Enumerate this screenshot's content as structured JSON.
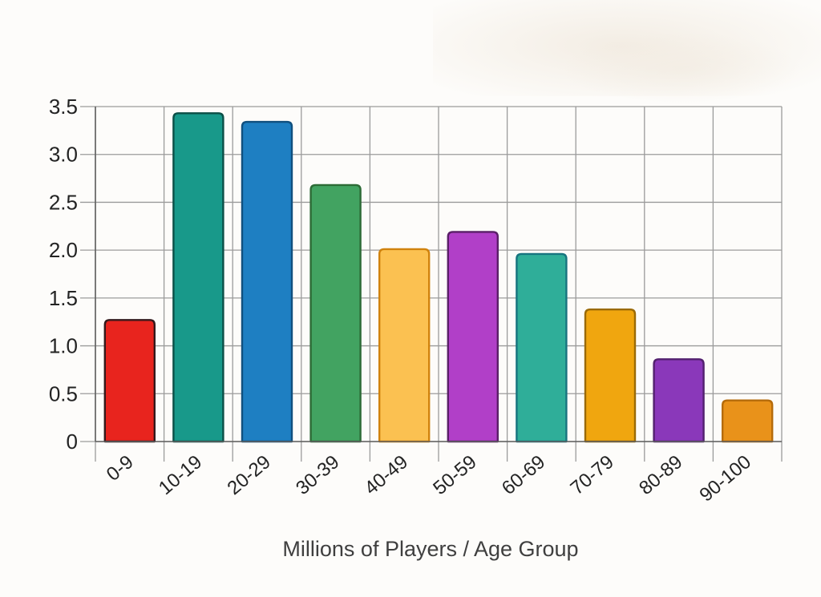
{
  "page": {
    "background": "#fdfcfa",
    "artifact": "faint-photo-smudge-top-right"
  },
  "chart_data": {
    "type": "bar",
    "title": "",
    "xlabel": "Millions of Players / Age Group",
    "ylabel": "",
    "categories": [
      "0-9",
      "10-19",
      "20-29",
      "30-39",
      "40-49",
      "50-59",
      "60-69",
      "70-79",
      "80-89",
      "90-100"
    ],
    "values": [
      1.27,
      3.43,
      3.34,
      2.68,
      2.01,
      2.19,
      1.96,
      1.38,
      0.86,
      0.43
    ],
    "bar_colors": [
      "#e8241e",
      "#18998a",
      "#1e7fc2",
      "#42a361",
      "#fbc151",
      "#b13fc8",
      "#2fae99",
      "#f0a60f",
      "#8a38ba",
      "#e9921a"
    ],
    "bar_border_colors": [
      "#34191c",
      "#0b4f47",
      "#10507f",
      "#2d6b36",
      "#d0820d",
      "#5a1f68",
      "#17747f",
      "#9a6a06",
      "#53216f",
      "#b56b0a"
    ],
    "ylim": [
      0,
      3.5
    ],
    "yticks": [
      0,
      0.5,
      1.0,
      1.5,
      2.0,
      2.5,
      3.0,
      3.5
    ],
    "ytick_labels": [
      "0",
      "0.5",
      "1.0",
      "1.5",
      "2.0",
      "2.5",
      "3.0",
      "3.5"
    ],
    "grid": true,
    "grid_style": "full-grid-horizontal-and-vertical",
    "legend": "none",
    "colors": {
      "grid": "#9b9b9b",
      "axis": "#606060",
      "tick_text": "#232323",
      "xlabel_text": "#3f3f3f"
    }
  }
}
